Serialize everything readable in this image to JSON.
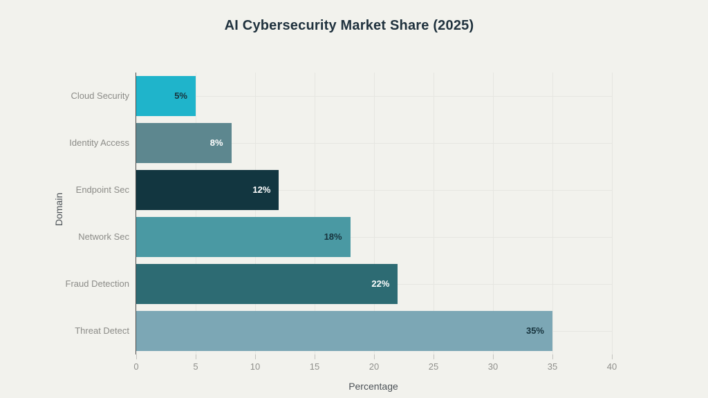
{
  "chart_data": {
    "type": "bar",
    "orientation": "horizontal",
    "title": "AI Cybersecurity Market Share (2025)",
    "xlabel": "Percentage",
    "ylabel": "Domain",
    "categories": [
      "Cloud Security",
      "Identity Access",
      "Endpoint Sec",
      "Network Sec",
      "Fraud Detection",
      "Threat Detect"
    ],
    "values": [
      5,
      8,
      12,
      18,
      22,
      35
    ],
    "value_labels": [
      "5%",
      "8%",
      "12%",
      "18%",
      "22%",
      "35%"
    ],
    "bar_colors": [
      "#1fb4cb",
      "#5d878f",
      "#123640",
      "#4a99a3",
      "#2d6b73",
      "#7ca7b5"
    ],
    "value_label_colors": [
      "#17333d",
      "#ffffff",
      "#ffffff",
      "#17333d",
      "#ffffff",
      "#17333d"
    ],
    "xlim": [
      0,
      40
    ],
    "xticks": [
      "0",
      "5",
      "10",
      "15",
      "20",
      "25",
      "30",
      "35",
      "40"
    ],
    "grid": true,
    "legend": false,
    "colors": {
      "background": "#f2f2ed",
      "title": "#20323e",
      "axis_line": "#4a4a4a",
      "gridline": "#e6e6e1",
      "tick_label": "#8f8f8b",
      "category_label": "#8b8b87",
      "axis_title": "#4c5257"
    }
  }
}
